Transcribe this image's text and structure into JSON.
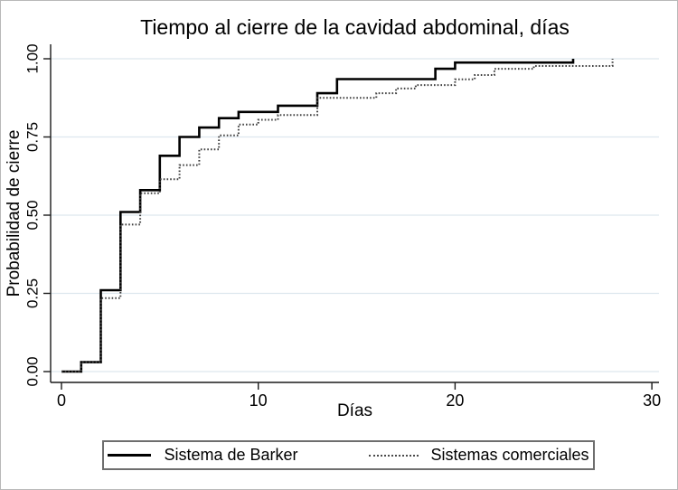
{
  "chart_data": {
    "type": "line",
    "subtype": "step-survival",
    "title": "Tiempo al cierre de la cavidad abdominal, días",
    "xlabel": "Días",
    "ylabel": "Probabilidad de cierre",
    "xlim": [
      0,
      30
    ],
    "ylim": [
      0,
      1
    ],
    "xticks": [
      0,
      10,
      20,
      30
    ],
    "xtick_labels": [
      "0",
      "10",
      "20",
      "30"
    ],
    "yticks": [
      0,
      0.25,
      0.5,
      0.75,
      1
    ],
    "ytick_labels": [
      "0.00",
      "0.25",
      "0.50",
      "0.75",
      "1.00"
    ],
    "grid": "horizontal",
    "gridline_color": "#dde7ee",
    "axis_color": "#1a1a1a",
    "legend_position": "bottom",
    "series": [
      {
        "name": "Sistema de Barker",
        "style": "solid",
        "color": "#000000",
        "points": [
          [
            0,
            0
          ],
          [
            1,
            0.03
          ],
          [
            2,
            0.26
          ],
          [
            3,
            0.51
          ],
          [
            4,
            0.58
          ],
          [
            5,
            0.69
          ],
          [
            6,
            0.75
          ],
          [
            7,
            0.78
          ],
          [
            8,
            0.81
          ],
          [
            9,
            0.83
          ],
          [
            11,
            0.85
          ],
          [
            13,
            0.89
          ],
          [
            14,
            0.935
          ],
          [
            19,
            0.968
          ],
          [
            20,
            0.988
          ],
          [
            26,
            1.0
          ]
        ]
      },
      {
        "name": "Sistemas comerciales",
        "style": "dotted",
        "color": "#3f3f3f",
        "points": [
          [
            0,
            0
          ],
          [
            1,
            0.03
          ],
          [
            2,
            0.235
          ],
          [
            3,
            0.47
          ],
          [
            4,
            0.57
          ],
          [
            5,
            0.615
          ],
          [
            6,
            0.66
          ],
          [
            7,
            0.71
          ],
          [
            8,
            0.755
          ],
          [
            9,
            0.79
          ],
          [
            10,
            0.805
          ],
          [
            11,
            0.82
          ],
          [
            13,
            0.875
          ],
          [
            16,
            0.89
          ],
          [
            17,
            0.905
          ],
          [
            18,
            0.916
          ],
          [
            20,
            0.934
          ],
          [
            21,
            0.948
          ],
          [
            22,
            0.968
          ],
          [
            24,
            0.977
          ],
          [
            28,
            1.0
          ]
        ]
      }
    ]
  }
}
